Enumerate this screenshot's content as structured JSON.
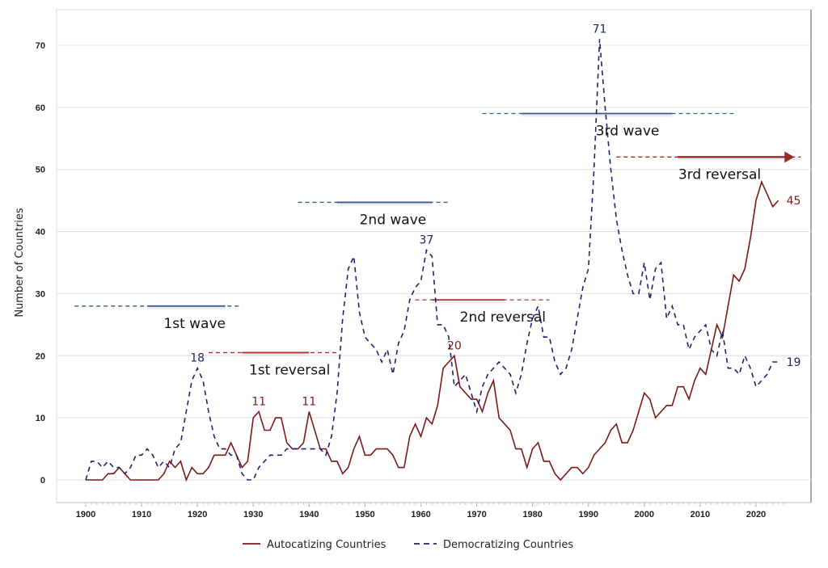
{
  "chart_data": {
    "type": "line",
    "title": "",
    "xlabel": "",
    "ylabel": "Number of Countries",
    "xlim": [
      1898,
      2028
    ],
    "ylim": [
      -2,
      73
    ],
    "x_ticks": [
      1900,
      1910,
      1920,
      1930,
      1940,
      1950,
      1960,
      1970,
      1980,
      1990,
      2000,
      2010,
      2020
    ],
    "y_ticks": [
      0,
      10,
      20,
      30,
      40,
      50,
      60,
      70
    ],
    "grid": "horizontal",
    "legend_placement": "bottom",
    "x_start": 1900,
    "series": [
      {
        "name": "Autocatizing Countries",
        "color": "#7a1a1a",
        "style": "solid",
        "values": [
          0,
          0,
          0,
          0,
          1,
          1,
          2,
          1,
          0,
          0,
          0,
          0,
          0,
          0,
          1,
          3,
          2,
          3,
          0,
          2,
          1,
          1,
          2,
          4,
          4,
          4,
          6,
          4,
          2,
          3,
          10,
          11,
          8,
          8,
          10,
          10,
          6,
          5,
          5,
          6,
          11,
          8,
          5,
          5,
          3,
          3,
          1,
          2,
          5,
          7,
          4,
          4,
          5,
          5,
          5,
          4,
          2,
          2,
          7,
          9,
          7,
          10,
          9,
          12,
          18,
          19,
          20,
          15,
          14,
          13,
          13,
          11,
          14,
          16,
          10,
          9,
          8,
          5,
          5,
          2,
          5,
          6,
          3,
          3,
          1,
          0,
          1,
          2,
          2,
          1,
          2,
          4,
          5,
          6,
          8,
          9,
          6,
          6,
          8,
          11,
          14,
          13,
          10,
          11,
          12,
          12,
          15,
          15,
          13,
          16,
          18,
          17,
          21,
          25,
          23,
          28,
          33,
          32,
          34,
          39,
          45,
          48,
          46,
          44,
          45
        ]
      },
      {
        "name": "Democratizing Countries",
        "color": "#22226a",
        "style": "dashed",
        "values": [
          0,
          3,
          3,
          2,
          3,
          2,
          2,
          1,
          2,
          4,
          4,
          5,
          4,
          2,
          3,
          2,
          5,
          6,
          11,
          16,
          18,
          16,
          11,
          7,
          5,
          5,
          4,
          4,
          1,
          0,
          0,
          2,
          3,
          4,
          4,
          4,
          5,
          5,
          5,
          5,
          5,
          5,
          5,
          4,
          7,
          14,
          26,
          34,
          36,
          27,
          23,
          22,
          21,
          19,
          21,
          17,
          22,
          24,
          29,
          31,
          32,
          37,
          36,
          25,
          25,
          23,
          15,
          16,
          17,
          14,
          11,
          15,
          17,
          18,
          19,
          18,
          17,
          14,
          17,
          22,
          26,
          28,
          23,
          23,
          19,
          17,
          18,
          21,
          26,
          31,
          34,
          50,
          71,
          60,
          50,
          42,
          37,
          33,
          30,
          30,
          35,
          29,
          34,
          35,
          26,
          28,
          25,
          25,
          21,
          23,
          24,
          25,
          21,
          20,
          24,
          18,
          18,
          17,
          20,
          18,
          15,
          16,
          17,
          19,
          19
        ]
      }
    ],
    "point_labels": [
      {
        "text": "18",
        "year": 1920,
        "value": 18,
        "series": 1
      },
      {
        "text": "11",
        "year": 1931,
        "value": 11,
        "series": 0
      },
      {
        "text": "11",
        "year": 1940,
        "value": 11,
        "series": 0
      },
      {
        "text": "37",
        "year": 1961,
        "value": 37,
        "series": 1
      },
      {
        "text": "20",
        "year": 1966,
        "value": 20,
        "series": 0
      },
      {
        "text": "71",
        "year": 1992,
        "value": 71,
        "series": 1
      },
      {
        "text": "45",
        "year": 2024,
        "value": 45,
        "series": 0
      },
      {
        "text": "19",
        "year": 2024,
        "value": 19,
        "series": 1
      }
    ],
    "annotations": [
      {
        "text": "1st wave",
        "value": 28,
        "dash_from": 1898,
        "solid_from": 1911,
        "solid_to": 1925,
        "dash_to": 1928,
        "color": "#3a5a8a"
      },
      {
        "text": "1st reversal",
        "value": 20.5,
        "dash_from": 1922,
        "solid_from": 1928,
        "solid_to": 1940,
        "dash_to": 1945,
        "color": "#b03030"
      },
      {
        "text": "2nd wave",
        "value": 44.7,
        "dash_from": 1938,
        "solid_from": 1945,
        "solid_to": 1962,
        "dash_to": 1965,
        "color": "#3a5a8a"
      },
      {
        "text": "2nd reversal",
        "value": 29,
        "dash_from": 1959,
        "solid_from": 1962,
        "solid_to": 1975,
        "dash_to": 1983,
        "color": "#b03030"
      },
      {
        "text": "3rd wave",
        "value": 59,
        "dash_from": 1971,
        "solid_from": 1978,
        "solid_to": 2005,
        "dash_to": 2016,
        "color": "#3a5a8a"
      },
      {
        "text": "3rd reversal",
        "value": 52,
        "dash_from": 1995,
        "solid_from": 2006,
        "solid_to": 2028,
        "dash_to": 2028,
        "color": "#9a2a2a",
        "arrow": true
      }
    ]
  }
}
